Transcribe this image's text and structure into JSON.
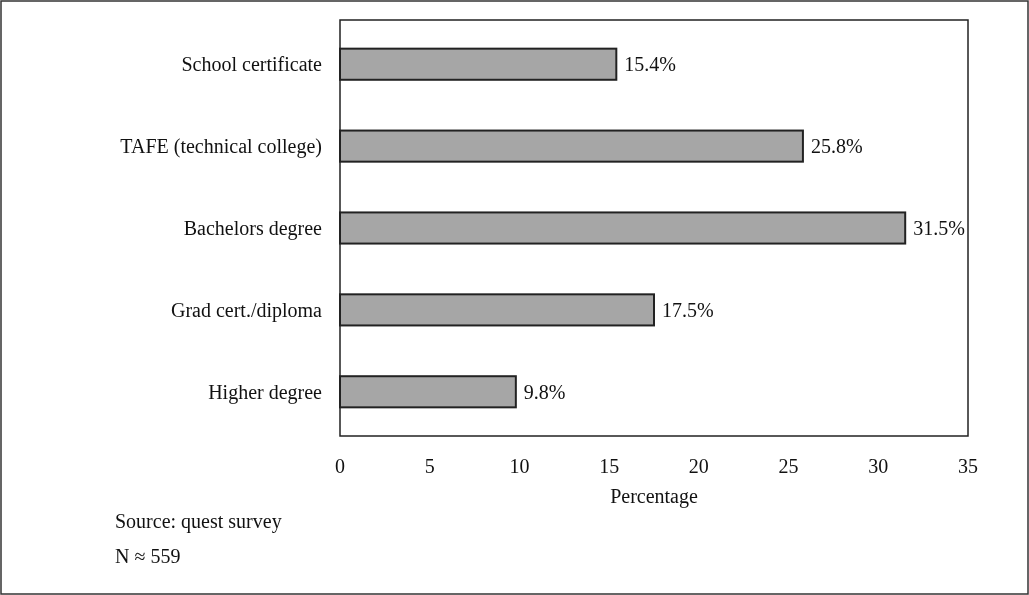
{
  "chart_data": {
    "type": "bar",
    "orientation": "horizontal",
    "categories": [
      "School certificate",
      "TAFE (technical college)",
      "Bachelors degree",
      "Grad cert./diploma",
      "Higher degree"
    ],
    "values": [
      15.4,
      25.8,
      31.5,
      17.5,
      9.8
    ],
    "value_labels": [
      "15.4%",
      "25.8%",
      "31.5%",
      "17.5%",
      "9.8%"
    ],
    "color": "#a6a6a6",
    "xlim": [
      0,
      35
    ],
    "xticks": [
      0,
      5,
      10,
      15,
      20,
      25,
      30,
      35
    ],
    "xlabel": "Percentage",
    "annotations": [
      "Source: quest survey",
      "N ≈ 559"
    ]
  }
}
